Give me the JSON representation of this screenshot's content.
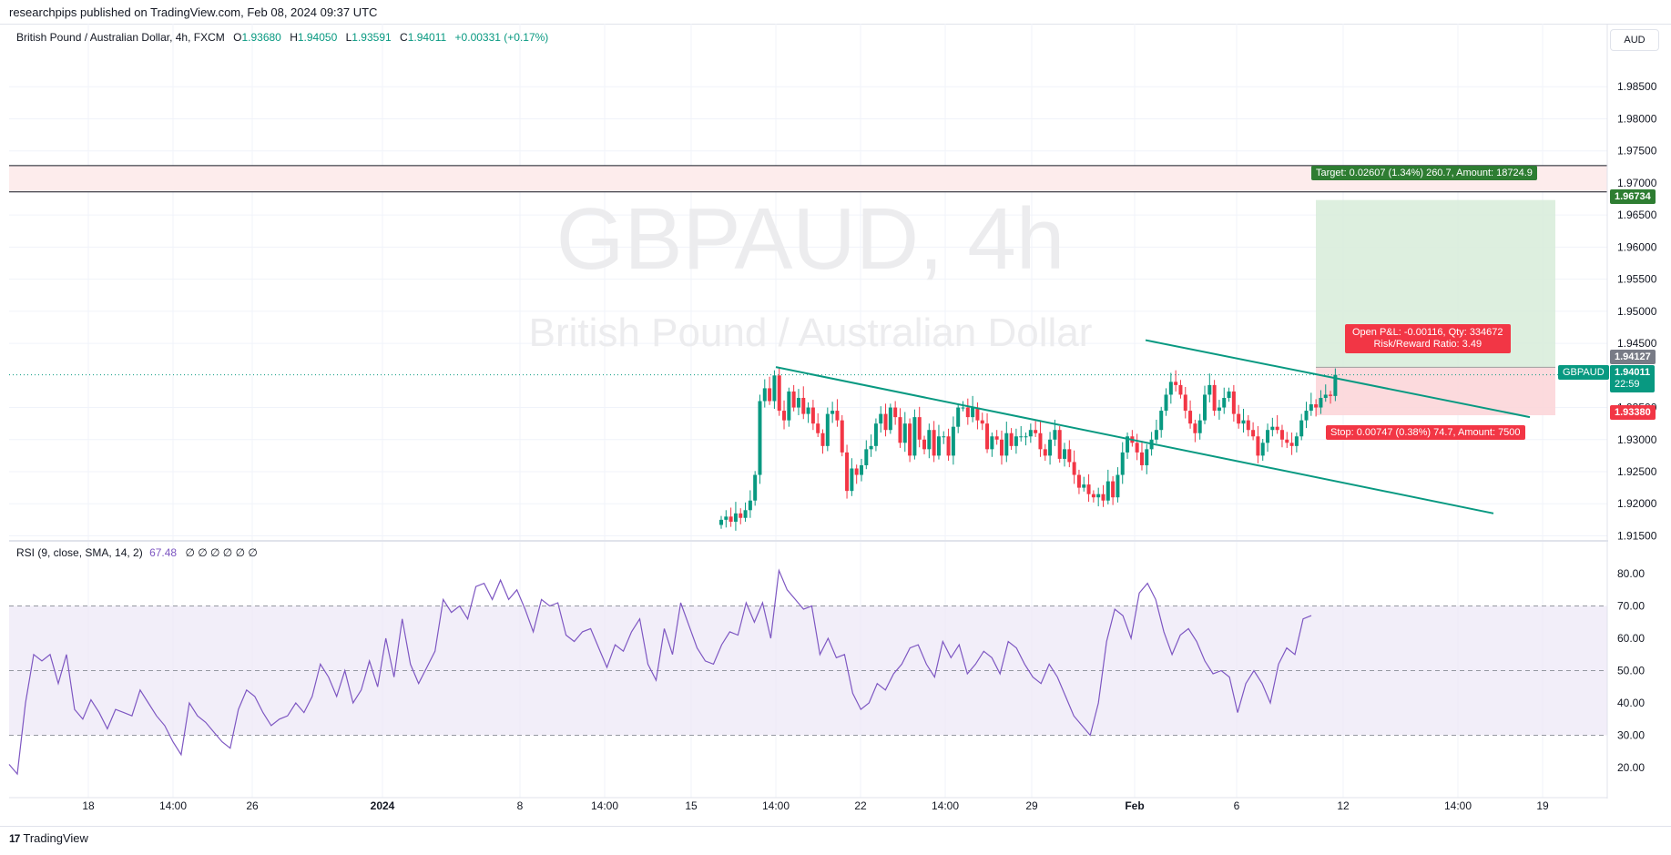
{
  "header": {
    "published": "researchpips published on TradingView.com, Feb 08, 2024 09:37 UTC"
  },
  "legend": {
    "symbol": "British Pound / Australian Dollar, 4h, FXCM",
    "o_label": "O",
    "o": "1.93680",
    "h_label": "H",
    "h": "1.94050",
    "l_label": "L",
    "l": "1.93591",
    "c_label": "C",
    "c": "1.94011",
    "change": "+0.00331 (+0.17%)"
  },
  "watermark": {
    "line1": "GBPAUD, 4h",
    "line2": "British Pound / Australian Dollar"
  },
  "currency_button": "AUD",
  "rsi_legend": {
    "label": "RSI (9, close, SMA, 14, 2)",
    "value": "67.48",
    "extra": "∅ ∅ ∅ ∅ ∅ ∅"
  },
  "position": {
    "target_label": "Target: 0.02607 (1.34%) 260.7, Amount: 18724.9",
    "pnl_label": "Open P&L: -0.00116, Qty: 334672",
    "rr_label": "Risk/Reward Ratio: 3.49",
    "stop_label": "Stop: 0.00747 (0.38%) 74.7, Amount: 7500",
    "target_price": "1.96734",
    "entry_price": "1.94127",
    "stop_price": "1.93380"
  },
  "price_tag": {
    "symbol": "GBPAUD",
    "price": "1.94011",
    "countdown": "22:59"
  },
  "brand": "TradingView",
  "colors": {
    "up": "#089981",
    "down": "#f23645",
    "rsi_line": "#7e57c2",
    "trendline": "#089981",
    "target_zone": "#d7ecd9",
    "stop_zone": "#fbd4d7"
  },
  "chart_data": [
    {
      "type": "candlestick",
      "title": "GBPAUD, 4h",
      "ylim": [
        1.915,
        1.99
      ],
      "y_ticks": [
        "1.98500",
        "1.98000",
        "1.97500",
        "1.97000",
        "1.96500",
        "1.96000",
        "1.95500",
        "1.95000",
        "1.94500",
        "1.93500",
        "1.93000",
        "1.92500",
        "1.92000",
        "1.91500"
      ],
      "x_ticks": [
        "18",
        "14:00",
        "26",
        "2024",
        "8",
        "14:00",
        "15",
        "14:00",
        "22",
        "14:00",
        "29",
        "Feb",
        "6",
        "12",
        "14:00",
        "19"
      ],
      "ohlc_close": [
        1.9175,
        1.918,
        1.9172,
        1.9185,
        1.9178,
        1.919,
        1.9205,
        1.9245,
        1.936,
        1.938,
        1.936,
        1.94,
        1.9345,
        1.933,
        1.9375,
        1.935,
        1.9365,
        1.934,
        1.935,
        1.9325,
        1.931,
        1.929,
        1.934,
        1.9345,
        1.933,
        1.928,
        1.922,
        1.9255,
        1.9245,
        1.926,
        1.9285,
        1.929,
        1.9325,
        1.934,
        1.9315,
        1.935,
        1.9335,
        1.9295,
        1.9325,
        1.9275,
        1.9335,
        1.93,
        1.9285,
        1.9315,
        1.9275,
        1.9305,
        1.9305,
        1.9275,
        1.932,
        1.935,
        1.935,
        1.9335,
        1.935,
        1.933,
        1.9325,
        1.9285,
        1.9305,
        1.93,
        1.9275,
        1.931,
        1.929,
        1.9305,
        1.9305,
        1.9305,
        1.9315,
        1.931,
        1.9285,
        1.9275,
        1.93,
        1.9315,
        1.927,
        1.9285,
        1.9265,
        1.9245,
        1.9225,
        1.923,
        1.9215,
        1.921,
        1.9215,
        1.9205,
        1.9235,
        1.921,
        1.9245,
        1.928,
        1.9305,
        1.9295,
        1.928,
        1.926,
        1.9285,
        1.93,
        1.9315,
        1.9345,
        1.937,
        1.939,
        1.9385,
        1.937,
        1.9345,
        1.9325,
        1.931,
        1.933,
        1.937,
        1.9385,
        1.9345,
        1.935,
        1.9365,
        1.9375,
        1.934,
        1.9325,
        1.933,
        1.9315,
        1.9305,
        1.9275,
        1.9295,
        1.9315,
        1.932,
        1.9315,
        1.93,
        1.9295,
        1.929,
        1.9305,
        1.933,
        1.9345,
        1.9355,
        1.935,
        1.9365,
        1.937,
        1.9368,
        1.9401
      ],
      "trendlines": [
        {
          "from": [
            "14:00 (Jan 15)",
            1.9413
          ],
          "to": [
            "Feb 13",
            1.9225
          ]
        },
        {
          "from": [
            "Feb 1",
            1.9455
          ],
          "to": [
            "Feb 13",
            1.9345
          ]
        }
      ],
      "horizontal_levels": [
        1.9727,
        1.9686
      ],
      "long_position": {
        "entry": 1.94127,
        "target": 1.96734,
        "stop": 1.9338
      }
    },
    {
      "type": "line",
      "title": "RSI (9, close, SMA, 14, 2)",
      "ylim": [
        10,
        85
      ],
      "y_ticks": [
        "80.00",
        "70.00",
        "60.00",
        "50.00",
        "40.00",
        "30.00",
        "20.00"
      ],
      "bands": {
        "upper": 70,
        "middle": 50,
        "lower": 30
      },
      "series": [
        {
          "name": "RSI",
          "values": [
            21,
            18,
            40,
            55,
            53,
            55,
            46,
            55,
            38,
            35,
            41,
            37,
            32,
            38,
            37,
            36,
            44,
            40,
            36,
            33,
            28,
            24,
            40,
            36,
            34,
            31,
            28,
            26,
            38,
            44,
            42,
            37,
            33,
            35,
            36,
            40,
            37,
            42,
            52,
            48,
            42,
            50,
            40,
            44,
            53,
            45,
            60,
            48,
            66,
            52,
            46,
            51,
            56,
            72,
            68,
            70,
            66,
            76,
            77,
            72,
            78,
            72,
            75,
            69,
            62,
            72,
            70,
            71,
            61,
            59,
            62,
            63,
            57,
            51,
            58,
            56,
            62,
            66,
            52,
            47,
            63,
            55,
            71,
            64,
            57,
            53,
            52,
            58,
            62,
            61,
            71,
            65,
            71,
            60,
            81,
            75,
            72,
            69,
            70,
            55,
            60,
            54,
            55,
            43,
            38,
            40,
            46,
            44,
            49,
            52,
            57,
            58,
            52,
            48,
            59,
            54,
            58,
            49,
            52,
            56,
            54,
            49,
            59,
            57,
            52,
            48,
            46,
            52,
            48,
            42,
            36,
            33,
            30,
            40,
            59,
            69,
            67,
            60,
            74,
            77,
            72,
            62,
            55,
            61,
            63,
            59,
            53,
            49,
            50,
            48,
            37,
            46,
            50,
            46,
            40,
            52,
            57,
            55,
            66,
            67
          ]
        }
      ]
    }
  ]
}
